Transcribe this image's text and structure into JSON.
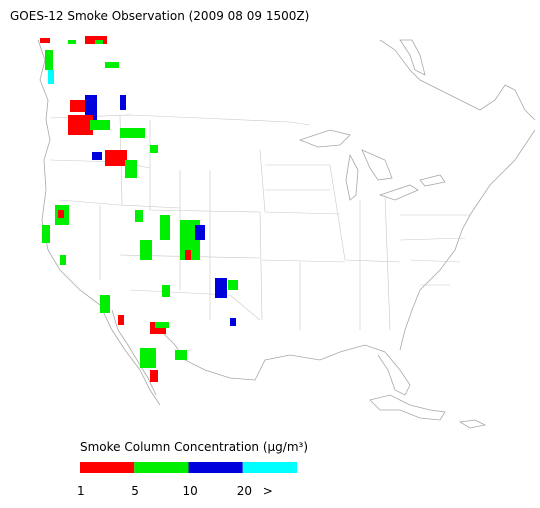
{
  "title": "GOES-12 Smoke Observation (2009 08 09  1500Z)",
  "legend": {
    "label": "Smoke Column Concentration (μg/m³)",
    "ticks": [
      "1",
      "5",
      "10",
      "20",
      ">"
    ],
    "colors": [
      "#ff0000",
      "#00ee00",
      "#0000dd",
      "#00ffff"
    ]
  }
}
